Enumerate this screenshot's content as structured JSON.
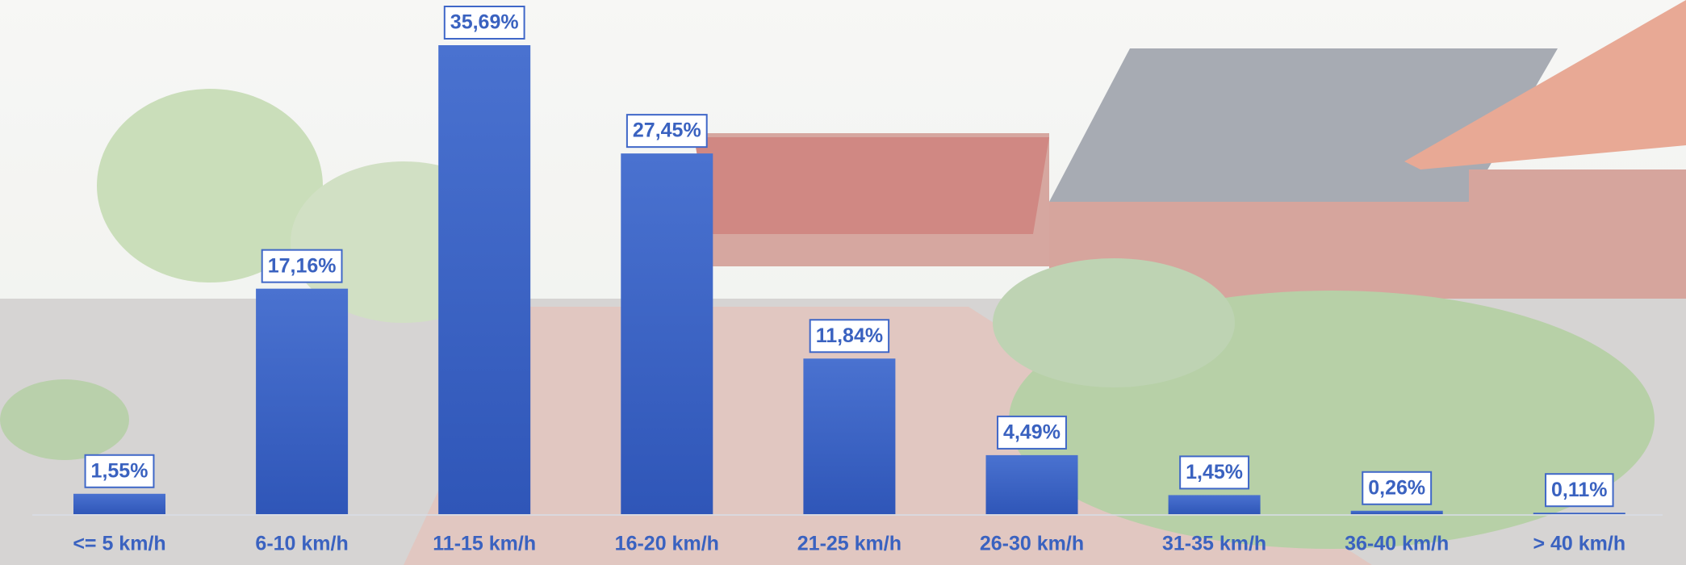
{
  "chart_data": {
    "type": "bar",
    "categories": [
      "<= 5 km/h",
      "6-10 km/h",
      "11-15 km/h",
      "16-20 km/h",
      "21-25 km/h",
      "26-30 km/h",
      "31-35 km/h",
      "36-40 km/h",
      "> 40 km/h"
    ],
    "values": [
      1.55,
      17.16,
      35.69,
      27.45,
      11.84,
      4.49,
      1.45,
      0.26,
      0.11
    ],
    "value_labels": [
      "1,55%",
      "17,16%",
      "35,69%",
      "27,45%",
      "11,84%",
      "4,49%",
      "1,45%",
      "0,26%",
      "0,11%"
    ],
    "color": "#3f67c8"
  }
}
